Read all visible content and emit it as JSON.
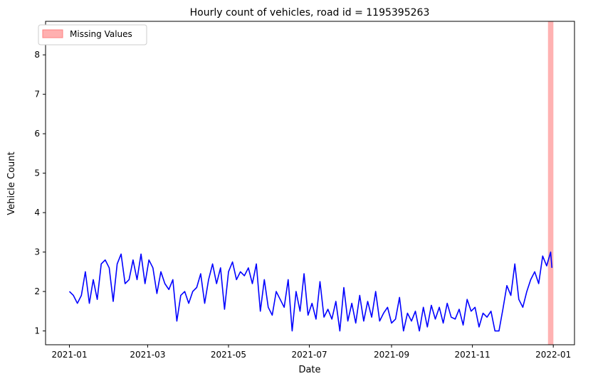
{
  "chart_data": {
    "type": "line",
    "title": "Hourly count of vehicles, road id = 1195395263",
    "xlabel": "Date",
    "ylabel": "Vehicle Count",
    "xlim": [
      "2020-12-14",
      "2022-01-17"
    ],
    "ylim": [
      0.65,
      8.85
    ],
    "x_ticks": [
      "2021-01",
      "2021-03",
      "2021-05",
      "2021-07",
      "2021-09",
      "2021-11",
      "2022-01"
    ],
    "y_ticks": [
      1,
      2,
      3,
      4,
      5,
      6,
      7,
      8
    ],
    "grid": false,
    "legend_position": "top-left",
    "series": [
      {
        "color": "#0000ff",
        "x": [
          "2021-01-01",
          "2021-01-04",
          "2021-01-07",
          "2021-01-10",
          "2021-01-13",
          "2021-01-16",
          "2021-01-19",
          "2021-01-22",
          "2021-01-25",
          "2021-01-28",
          "2021-01-31",
          "2021-02-03",
          "2021-02-06",
          "2021-02-09",
          "2021-02-12",
          "2021-02-15",
          "2021-02-18",
          "2021-02-21",
          "2021-02-24",
          "2021-02-27",
          "2021-03-02",
          "2021-03-05",
          "2021-03-08",
          "2021-03-11",
          "2021-03-14",
          "2021-03-17",
          "2021-03-20",
          "2021-03-23",
          "2021-03-26",
          "2021-03-29",
          "2021-04-01",
          "2021-04-04",
          "2021-04-07",
          "2021-04-10",
          "2021-04-13",
          "2021-04-16",
          "2021-04-19",
          "2021-04-22",
          "2021-04-25",
          "2021-04-28",
          "2021-05-01",
          "2021-05-04",
          "2021-05-07",
          "2021-05-10",
          "2021-05-13",
          "2021-05-16",
          "2021-05-19",
          "2021-05-22",
          "2021-05-25",
          "2021-05-28",
          "2021-05-31",
          "2021-06-03",
          "2021-06-06",
          "2021-06-09",
          "2021-06-12",
          "2021-06-15",
          "2021-06-18",
          "2021-06-21",
          "2021-06-24",
          "2021-06-27",
          "2021-06-30",
          "2021-07-03",
          "2021-07-06",
          "2021-07-09",
          "2021-07-12",
          "2021-07-15",
          "2021-07-18",
          "2021-07-21",
          "2021-07-24",
          "2021-07-27",
          "2021-07-30",
          "2021-08-02",
          "2021-08-05",
          "2021-08-08",
          "2021-08-11",
          "2021-08-14",
          "2021-08-17",
          "2021-08-20",
          "2021-08-23",
          "2021-08-26",
          "2021-08-29",
          "2021-09-01",
          "2021-09-04",
          "2021-09-07",
          "2021-09-10",
          "2021-09-13",
          "2021-09-16",
          "2021-09-19",
          "2021-09-22",
          "2021-09-25",
          "2021-09-28",
          "2021-10-01",
          "2021-10-04",
          "2021-10-07",
          "2021-10-10",
          "2021-10-13",
          "2021-10-16",
          "2021-10-19",
          "2021-10-22",
          "2021-10-25",
          "2021-10-28",
          "2021-10-31",
          "2021-11-03",
          "2021-11-06",
          "2021-11-09",
          "2021-11-12",
          "2021-11-15",
          "2021-11-18",
          "2021-11-21",
          "2021-11-24",
          "2021-11-27",
          "2021-11-30",
          "2021-12-03",
          "2021-12-06",
          "2021-12-09",
          "2021-12-12",
          "2021-12-15",
          "2021-12-18",
          "2021-12-21",
          "2021-12-24",
          "2021-12-27",
          "2021-12-30",
          "2021-12-31"
        ],
        "y": [
          2.0,
          1.9,
          1.7,
          1.9,
          2.5,
          1.7,
          2.3,
          1.8,
          2.7,
          2.8,
          2.6,
          1.75,
          2.7,
          2.95,
          2.2,
          2.3,
          2.8,
          2.3,
          2.95,
          2.2,
          2.8,
          2.6,
          1.95,
          2.5,
          2.2,
          2.05,
          2.3,
          1.25,
          1.9,
          2.0,
          1.7,
          2.0,
          2.1,
          2.45,
          1.7,
          2.3,
          2.7,
          2.2,
          2.6,
          1.55,
          2.5,
          2.75,
          2.3,
          2.5,
          2.4,
          2.6,
          2.2,
          2.7,
          1.5,
          2.3,
          1.6,
          1.4,
          2.0,
          1.8,
          1.6,
          2.3,
          1.0,
          2.0,
          1.5,
          2.45,
          1.4,
          1.7,
          1.3,
          2.25,
          1.35,
          1.55,
          1.3,
          1.75,
          1.0,
          2.1,
          1.25,
          1.7,
          1.2,
          1.9,
          1.25,
          1.75,
          1.35,
          2.0,
          1.25,
          1.45,
          1.6,
          1.2,
          1.3,
          1.85,
          1.0,
          1.45,
          1.25,
          1.5,
          1.0,
          1.6,
          1.1,
          1.65,
          1.3,
          1.6,
          1.2,
          1.7,
          1.35,
          1.3,
          1.55,
          1.15,
          1.8,
          1.5,
          1.6,
          1.1,
          1.45,
          1.35,
          1.5,
          1.0,
          1.0,
          1.55,
          2.15,
          1.9,
          2.7,
          1.8,
          1.6,
          2.0,
          2.3,
          2.5,
          2.2,
          2.9,
          2.65,
          3.0,
          2.6
        ],
        "note": ""
      }
    ],
    "missing_band": {
      "start": "2021-12-28",
      "end": "2021-12-31",
      "color": "#ff0000"
    },
    "legend": [
      {
        "label": "Missing Values",
        "color": "#ffb0b0"
      }
    ]
  }
}
